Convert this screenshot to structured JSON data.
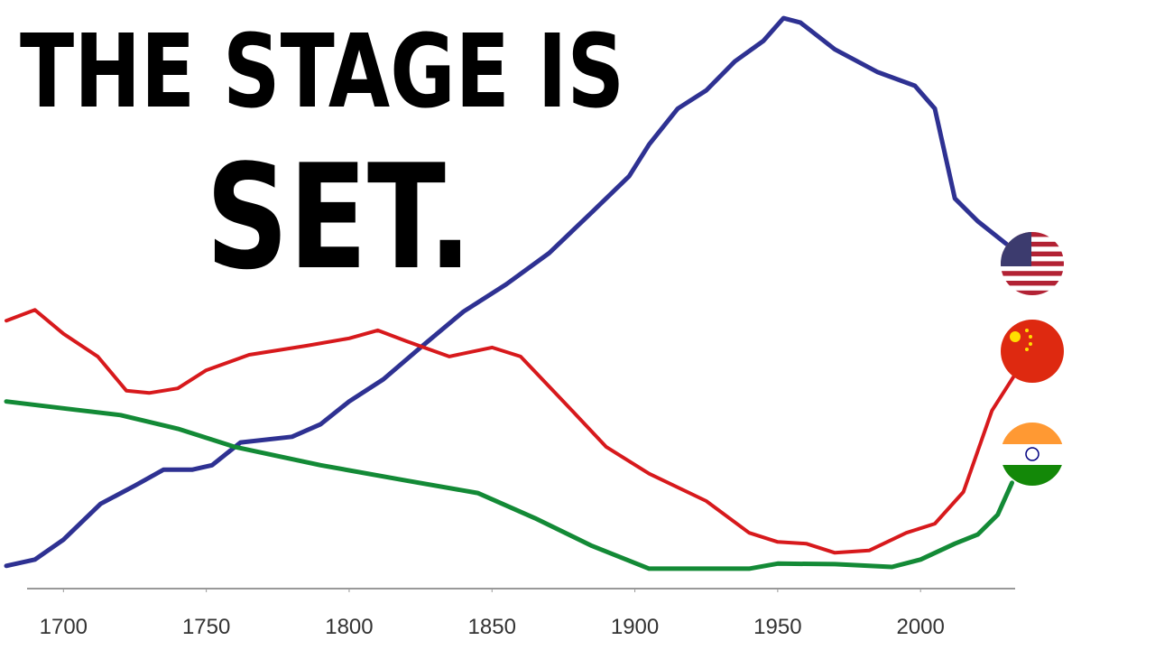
{
  "chart_data": {
    "type": "line",
    "title": [
      "THE STAGE IS",
      "SET."
    ],
    "xlim": [
      1680,
      2035
    ],
    "ylim": [
      0,
      100
    ],
    "xticks": [
      1700,
      1750,
      1800,
      1850,
      1900,
      1950,
      2000
    ],
    "grid": false,
    "series": [
      {
        "color": "#2e3192",
        "x": [
          1680,
          1690,
          1700,
          1713,
          1725,
          1735,
          1745,
          1752,
          1762,
          1780,
          1790,
          1800,
          1812,
          1825,
          1840,
          1855,
          1870,
          1885,
          1898,
          1905,
          1915,
          1925,
          1935,
          1945,
          1952,
          1958,
          1970,
          1985,
          1998,
          2005,
          2012,
          2020,
          2030
        ],
        "values": [
          2.1,
          3.2,
          6.7,
          13.0,
          16.2,
          19.0,
          19.0,
          19.8,
          23.8,
          24.8,
          27.0,
          31.0,
          34.9,
          40.5,
          46.8,
          51.6,
          57.1,
          64.3,
          70.6,
          76.2,
          82.5,
          85.7,
          90.8,
          94.4,
          98.4,
          97.6,
          92.9,
          88.9,
          86.5,
          82.5,
          66.7,
          62.7,
          58.7
        ]
      },
      {
        "color": "#d7191c",
        "x": [
          1680,
          1690,
          1700,
          1712,
          1722,
          1730,
          1740,
          1750,
          1765,
          1785,
          1800,
          1810,
          1820,
          1835,
          1850,
          1860,
          1875,
          1890,
          1905,
          1925,
          1940,
          1950,
          1960,
          1970,
          1982,
          1995,
          2005,
          2015,
          2025,
          2033
        ],
        "values": [
          45.2,
          47.1,
          42.9,
          38.9,
          32.9,
          32.5,
          33.3,
          36.5,
          39.2,
          40.8,
          42.1,
          43.5,
          41.6,
          38.9,
          40.5,
          38.9,
          31.0,
          23.0,
          18.3,
          13.5,
          7.9,
          6.3,
          6.0,
          4.4,
          4.8,
          7.9,
          9.5,
          15.1,
          29.4,
          35.7
        ]
      },
      {
        "color": "#138a36",
        "x": [
          1680,
          1700,
          1720,
          1740,
          1760,
          1790,
          1820,
          1845,
          1865,
          1885,
          1905,
          1940,
          1950,
          1970,
          1990,
          2000,
          2012,
          2020,
          2027,
          2032
        ],
        "values": [
          31.0,
          29.8,
          28.6,
          26.2,
          23.0,
          19.8,
          17.1,
          14.9,
          10.5,
          5.6,
          1.6,
          1.6,
          2.5,
          2.4,
          1.9,
          3.2,
          6.0,
          7.6,
          11.1,
          16.7
        ]
      }
    ]
  }
}
